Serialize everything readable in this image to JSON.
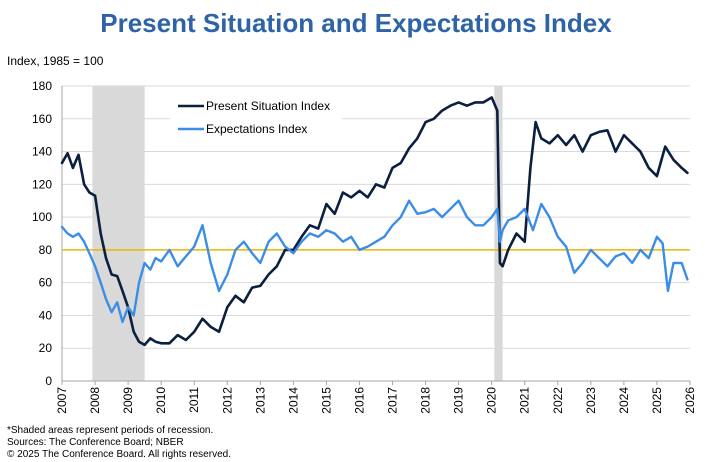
{
  "chart_data": {
    "type": "line",
    "title": "Present Situation and Expectations Index",
    "ylabel": "Index, 1985 = 100",
    "xlabel": "",
    "xlim": [
      2007,
      2026
    ],
    "ylim": [
      0,
      180
    ],
    "yticks": [
      0,
      20,
      40,
      60,
      80,
      100,
      120,
      140,
      160,
      180
    ],
    "xticks": [
      "2007",
      "2008",
      "2009",
      "2010",
      "2011",
      "2012",
      "2013",
      "2014",
      "2015",
      "2016",
      "2017",
      "2018",
      "2019",
      "2020",
      "2021",
      "2022",
      "2023",
      "2024",
      "2025",
      "2026"
    ],
    "grid": true,
    "legend_position": "top-left",
    "reference_line": {
      "y": 80,
      "color": "#f0b400"
    },
    "recessions": [
      [
        2007.92,
        2009.5
      ],
      [
        2020.08,
        2020.33
      ]
    ],
    "series": [
      {
        "name": "Present Situation Index",
        "color": "#0b1f3f",
        "x": [
          2007.0,
          2007.17,
          2007.33,
          2007.5,
          2007.67,
          2007.83,
          2008.0,
          2008.17,
          2008.33,
          2008.5,
          2008.67,
          2008.83,
          2009.0,
          2009.17,
          2009.33,
          2009.5,
          2009.67,
          2009.83,
          2010.0,
          2010.25,
          2010.5,
          2010.75,
          2011.0,
          2011.25,
          2011.5,
          2011.75,
          2012.0,
          2012.25,
          2012.5,
          2012.75,
          2013.0,
          2013.25,
          2013.5,
          2013.75,
          2014.0,
          2014.25,
          2014.5,
          2014.75,
          2015.0,
          2015.25,
          2015.5,
          2015.75,
          2016.0,
          2016.25,
          2016.5,
          2016.75,
          2017.0,
          2017.25,
          2017.5,
          2017.75,
          2018.0,
          2018.25,
          2018.5,
          2018.75,
          2019.0,
          2019.25,
          2019.5,
          2019.75,
          2020.0,
          2020.17,
          2020.25,
          2020.33,
          2020.5,
          2020.75,
          2021.0,
          2021.17,
          2021.33,
          2021.5,
          2021.75,
          2022.0,
          2022.25,
          2022.5,
          2022.75,
          2023.0,
          2023.25,
          2023.5,
          2023.75,
          2024.0,
          2024.25,
          2024.5,
          2024.75,
          2025.0,
          2025.25,
          2025.5,
          2025.75,
          2025.92
        ],
        "values": [
          133,
          139,
          130,
          138,
          120,
          115,
          113,
          90,
          75,
          65,
          64,
          55,
          45,
          30,
          24,
          22,
          26,
          24,
          23,
          23,
          28,
          25,
          30,
          38,
          33,
          30,
          45,
          52,
          48,
          57,
          58,
          65,
          70,
          80,
          80,
          88,
          95,
          93,
          108,
          102,
          115,
          112,
          116,
          112,
          120,
          118,
          130,
          133,
          142,
          148,
          158,
          160,
          165,
          168,
          170,
          168,
          170,
          170,
          173,
          165,
          72,
          70,
          80,
          90,
          85,
          130,
          158,
          148,
          145,
          150,
          144,
          150,
          140,
          150,
          152,
          153,
          140,
          150,
          145,
          140,
          130,
          125,
          143,
          135,
          130,
          127
        ]
      },
      {
        "name": "Expectations Index",
        "color": "#3c8de6",
        "x": [
          2007.0,
          2007.17,
          2007.33,
          2007.5,
          2007.67,
          2007.83,
          2008.0,
          2008.17,
          2008.33,
          2008.5,
          2008.67,
          2008.83,
          2009.0,
          2009.17,
          2009.33,
          2009.5,
          2009.67,
          2009.83,
          2010.0,
          2010.25,
          2010.5,
          2010.75,
          2011.0,
          2011.25,
          2011.5,
          2011.75,
          2012.0,
          2012.25,
          2012.5,
          2012.75,
          2013.0,
          2013.25,
          2013.5,
          2013.75,
          2014.0,
          2014.25,
          2014.5,
          2014.75,
          2015.0,
          2015.25,
          2015.5,
          2015.75,
          2016.0,
          2016.25,
          2016.5,
          2016.75,
          2017.0,
          2017.25,
          2017.5,
          2017.75,
          2018.0,
          2018.25,
          2018.5,
          2018.75,
          2019.0,
          2019.25,
          2019.5,
          2019.75,
          2020.0,
          2020.17,
          2020.25,
          2020.33,
          2020.5,
          2020.75,
          2021.0,
          2021.25,
          2021.5,
          2021.75,
          2022.0,
          2022.25,
          2022.5,
          2022.75,
          2023.0,
          2023.25,
          2023.5,
          2023.75,
          2024.0,
          2024.25,
          2024.5,
          2024.75,
          2025.0,
          2025.17,
          2025.33,
          2025.5,
          2025.75,
          2025.92
        ],
        "values": [
          94,
          90,
          88,
          90,
          85,
          78,
          70,
          60,
          50,
          42,
          48,
          36,
          45,
          40,
          60,
          72,
          68,
          75,
          73,
          80,
          70,
          76,
          82,
          95,
          72,
          55,
          65,
          80,
          85,
          78,
          72,
          85,
          90,
          82,
          78,
          85,
          90,
          88,
          92,
          90,
          85,
          88,
          80,
          82,
          85,
          88,
          95,
          100,
          110,
          102,
          103,
          105,
          100,
          105,
          110,
          100,
          95,
          95,
          100,
          105,
          85,
          92,
          98,
          100,
          105,
          92,
          108,
          100,
          88,
          82,
          66,
          72,
          80,
          75,
          70,
          76,
          78,
          72,
          80,
          75,
          88,
          84,
          55,
          72,
          72,
          62
        ]
      }
    ]
  },
  "footer": {
    "note": "*Shaded areas represent periods of recession.",
    "sources": "Sources: The Conference Board;  NBER",
    "copyright": "© 2025 The Conference Board. All rights reserved."
  }
}
